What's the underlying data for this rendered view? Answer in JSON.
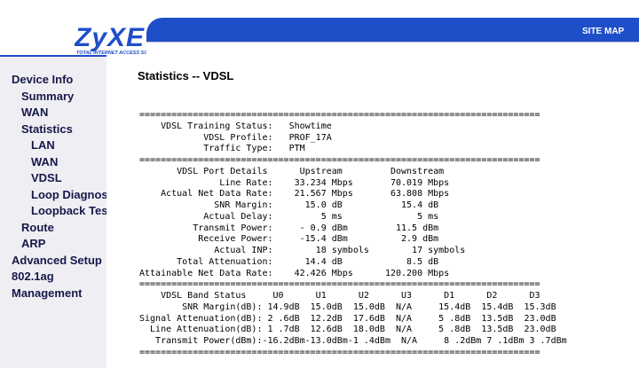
{
  "header": {
    "logo": "ZyXE",
    "tagline": "TOTAL INTERNET ACCESS SOL",
    "site_map": "SITE MAP"
  },
  "menu": [
    {
      "label": "Device Info",
      "level": 0
    },
    {
      "label": "Summary",
      "level": 1
    },
    {
      "label": "WAN",
      "level": 1
    },
    {
      "label": "Statistics",
      "level": 1
    },
    {
      "label": "LAN",
      "level": 2
    },
    {
      "label": "WAN",
      "level": 2
    },
    {
      "label": "VDSL",
      "level": 2
    },
    {
      "label": "Loop Diagnos",
      "level": 2
    },
    {
      "label": "Loopback Tes",
      "level": 2
    },
    {
      "label": "Route",
      "level": 1
    },
    {
      "label": "ARP",
      "level": 1
    },
    {
      "label": "Advanced Setup",
      "level": 0
    },
    {
      "label": "802.1ag",
      "level": 0
    },
    {
      "label": "Management",
      "level": 0
    }
  ],
  "content": {
    "title": "Statistics -- VDSL",
    "lines": [
      "===========================================================================",
      "    VDSL Training Status:   Showtime",
      "            VDSL Profile:   PROF_17A",
      "            Traffic Type:   PTM",
      "===========================================================================",
      "       VDSL Port Details      Upstream         Downstream",
      "               Line Rate:    33.234 Mbps       70.019 Mbps",
      "    Actual Net Data Rate:    21.567 Mbps       63.808 Mbps",
      "              SNR Margin:      15.0 dB           15.4 dB",
      "            Actual Delay:         5 ms              5 ms",
      "          Transmit Power:     - 0.9 dBm         11.5 dBm",
      "           Receive Power:     -15.4 dBm          2.9 dBm",
      "              Actual INP:        18 symbols        17 symbols",
      "       Total Attenuation:      14.4 dB            8.5 dB",
      "Attainable Net Data Rate:    42.426 Mbps      120.200 Mbps",
      "===========================================================================",
      "    VDSL Band Status     U0      U1      U2      U3      D1      D2      D3",
      "        SNR Margin(dB): 14.9dB  15.0dB  15.0dB  N/A     15.4dB  15.4dB  15.3dB",
      "Signal Attenuation(dB): 2 .6dB  12.2dB  17.6dB  N/A     5 .8dB  13.5dB  23.0dB",
      "  Line Attenuation(dB): 1 .7dB  12.6dB  18.0dB  N/A     5 .8dB  13.5dB  23.0dB",
      "   Transmit Power(dBm):-16.2dBm-13.0dBm-1 .4dBm  N/A     8 .2dBm 7 .1dBm 3 .7dBm",
      "==========================================================================="
    ]
  }
}
